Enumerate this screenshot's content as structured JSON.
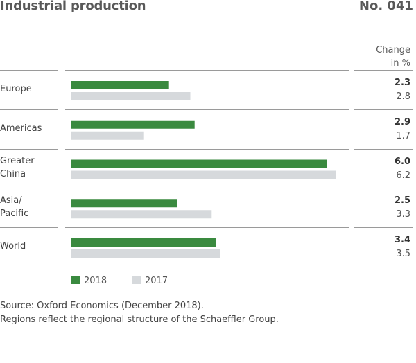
{
  "header": {
    "title": "Industrial production",
    "number": "No. 041"
  },
  "column_header": [
    "Change",
    "in %"
  ],
  "colors": {
    "current": "#3a8a3f",
    "previous": "#d6d9dc"
  },
  "chart_data": {
    "type": "bar",
    "orientation": "horizontal",
    "categories": [
      [
        "Europe"
      ],
      [
        "Americas"
      ],
      [
        "Greater",
        "China"
      ],
      [
        "Asia/",
        "Pacific"
      ],
      [
        "World"
      ]
    ],
    "series": [
      {
        "name": "2018",
        "values": [
          2.3,
          2.9,
          6.0,
          2.5,
          3.4
        ]
      },
      {
        "name": "2017",
        "values": [
          2.8,
          1.7,
          6.2,
          3.3,
          3.5
        ]
      }
    ],
    "value_labels": [
      [
        "2.3",
        "2.8"
      ],
      [
        "2.9",
        "1.7"
      ],
      [
        "6.0",
        "6.2"
      ],
      [
        "2.5",
        "3.3"
      ],
      [
        "3.4",
        "3.5"
      ]
    ],
    "xlim": [
      0,
      6.2
    ],
    "legend_position": "bottom-left"
  },
  "legend": [
    "2018",
    "2017"
  ],
  "footnote": [
    "Source: Oxford Economics (December 2018).",
    "Regions reflect the regional structure of the Schaeffler Group."
  ]
}
